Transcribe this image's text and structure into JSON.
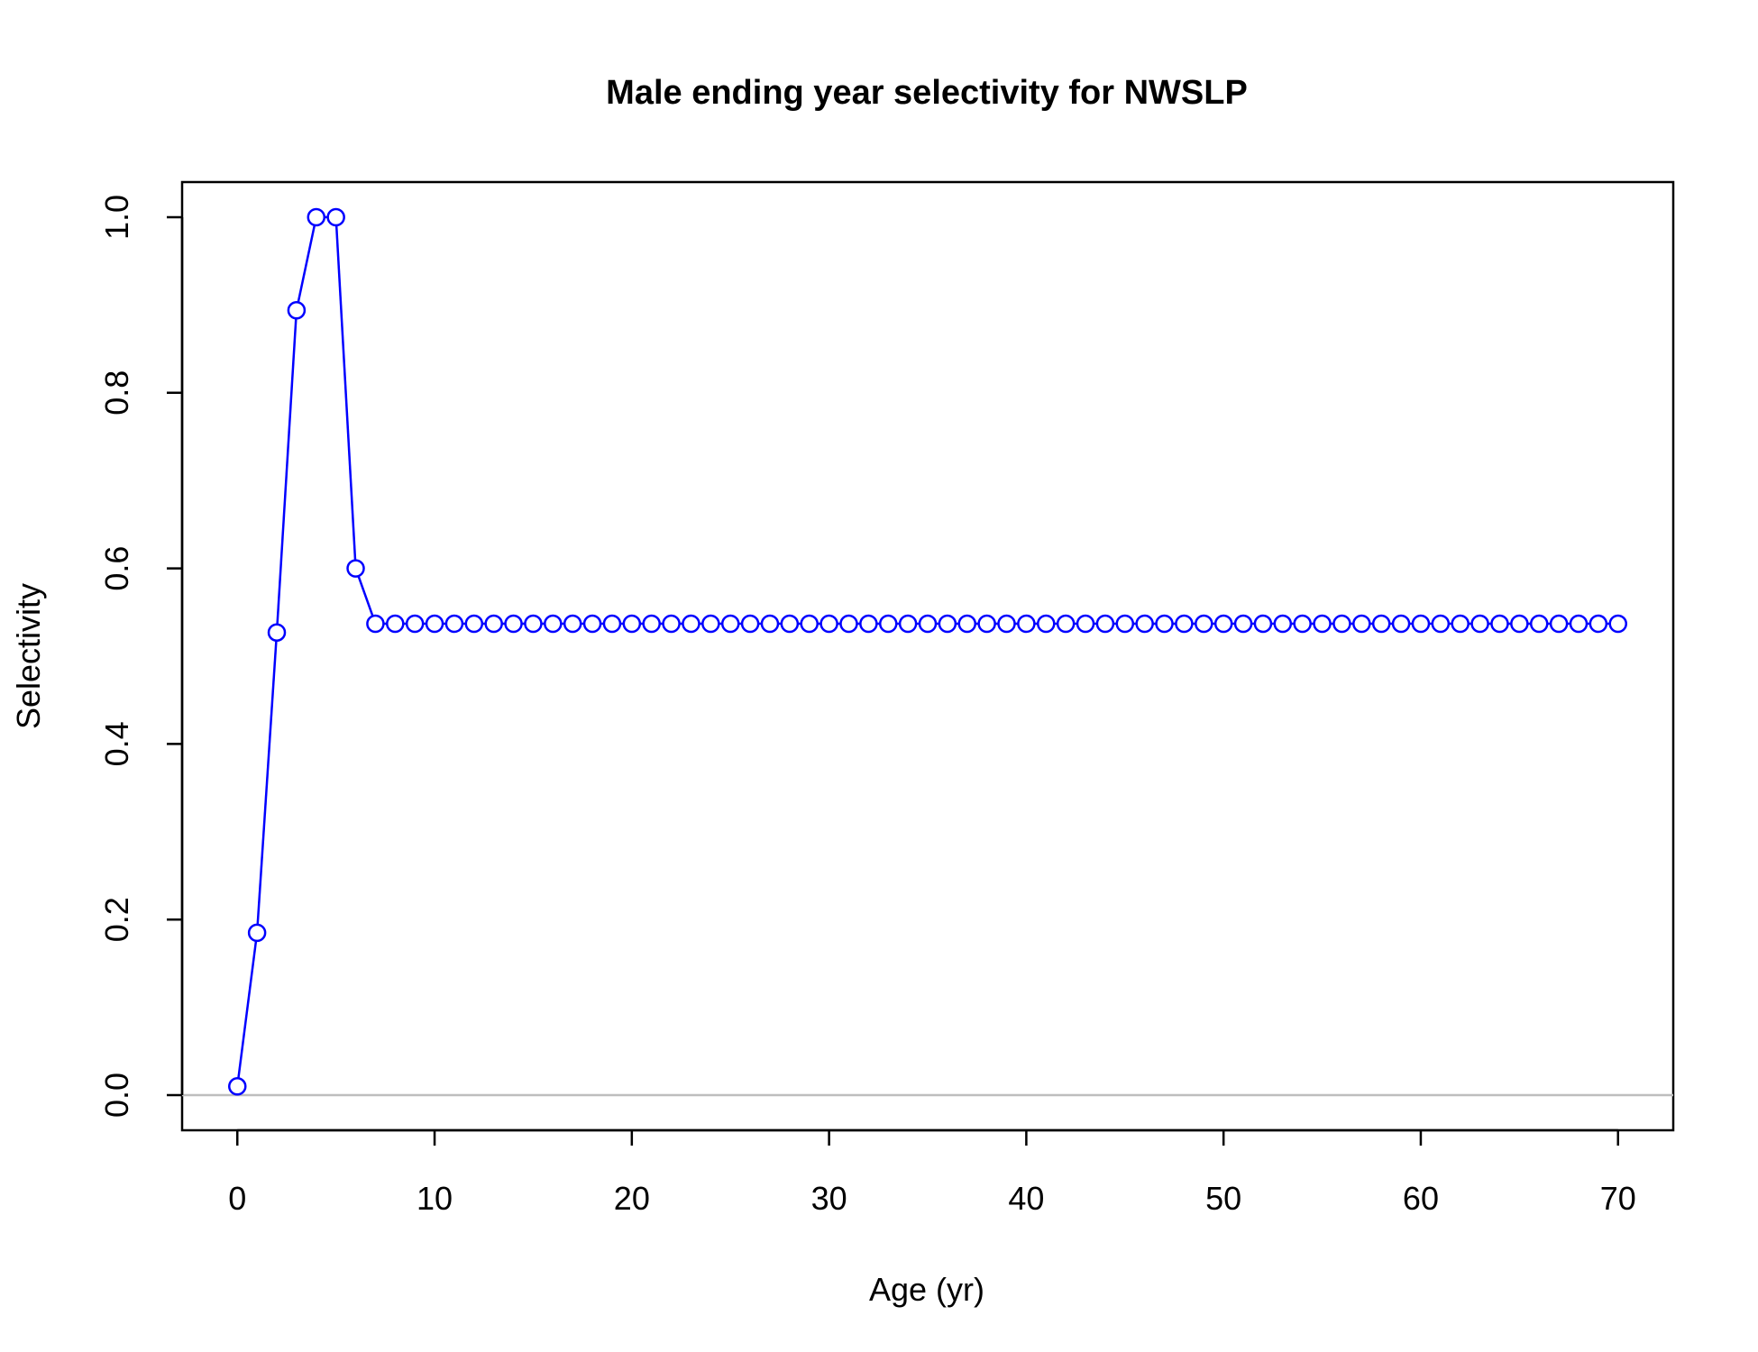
{
  "chart_data": {
    "type": "line",
    "title": "Male ending year selectivity for NWSLP",
    "xlabel": "Age (yr)",
    "ylabel": "Selectivity",
    "xlim": [
      -2.8,
      72.8
    ],
    "ylim": [
      -0.04,
      1.04
    ],
    "xticks": [
      0,
      10,
      20,
      30,
      40,
      50,
      60,
      70
    ],
    "yticks": [
      0.0,
      0.2,
      0.4,
      0.6,
      0.8,
      1.0
    ],
    "xtick_labels": [
      "0",
      "10",
      "20",
      "30",
      "40",
      "50",
      "60",
      "70"
    ],
    "ytick_labels": [
      "0.0",
      "0.2",
      "0.4",
      "0.6",
      "0.8",
      "1.0"
    ],
    "grid": false,
    "reference_line": {
      "y": 0,
      "color": "#bebebe"
    },
    "series_color": "#0000ff",
    "marker": "open-circle",
    "x": [
      0,
      1,
      2,
      3,
      4,
      5,
      6,
      7,
      8,
      9,
      10,
      11,
      12,
      13,
      14,
      15,
      16,
      17,
      18,
      19,
      20,
      21,
      22,
      23,
      24,
      25,
      26,
      27,
      28,
      29,
      30,
      31,
      32,
      33,
      34,
      35,
      36,
      37,
      38,
      39,
      40,
      41,
      42,
      43,
      44,
      45,
      46,
      47,
      48,
      49,
      50,
      51,
      52,
      53,
      54,
      55,
      56,
      57,
      58,
      59,
      60,
      61,
      62,
      63,
      64,
      65,
      66,
      67,
      68,
      69,
      70
    ],
    "y": [
      0.01,
      0.185,
      0.527,
      0.894,
      1.0,
      1.0,
      0.6,
      0.537,
      0.537,
      0.537,
      0.537,
      0.537,
      0.537,
      0.537,
      0.537,
      0.537,
      0.537,
      0.537,
      0.537,
      0.537,
      0.537,
      0.537,
      0.537,
      0.537,
      0.537,
      0.537,
      0.537,
      0.537,
      0.537,
      0.537,
      0.537,
      0.537,
      0.537,
      0.537,
      0.537,
      0.537,
      0.537,
      0.537,
      0.537,
      0.537,
      0.537,
      0.537,
      0.537,
      0.537,
      0.537,
      0.537,
      0.537,
      0.537,
      0.537,
      0.537,
      0.537,
      0.537,
      0.537,
      0.537,
      0.537,
      0.537,
      0.537,
      0.537,
      0.537,
      0.537,
      0.537,
      0.537,
      0.537,
      0.537,
      0.537,
      0.537,
      0.537,
      0.537,
      0.537,
      0.537,
      0.537
    ]
  }
}
